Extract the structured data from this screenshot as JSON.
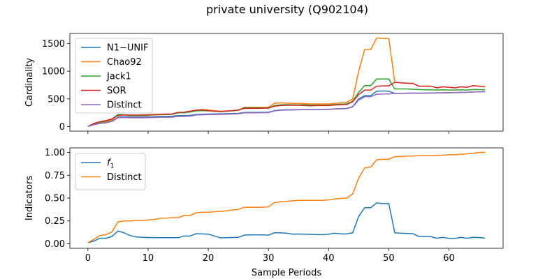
{
  "title": "private university (Q902104)",
  "chart_data": [
    {
      "type": "line",
      "ylabel": "Cardinality",
      "xlabel": "",
      "xlim": [
        -3,
        69
      ],
      "ylim": [
        -80,
        1680
      ],
      "yticks": [
        0,
        500,
        1000,
        1500
      ],
      "xticks": [
        0,
        10,
        20,
        30,
        40,
        50,
        60
      ],
      "show_xtick_labels": false,
      "grid": false,
      "legend_position": "top-left",
      "x": [
        0,
        1,
        2,
        3,
        4,
        5,
        6,
        7,
        8,
        9,
        10,
        11,
        12,
        13,
        14,
        15,
        16,
        17,
        18,
        19,
        20,
        21,
        22,
        23,
        24,
        25,
        26,
        27,
        28,
        29,
        30,
        31,
        32,
        33,
        34,
        35,
        36,
        37,
        38,
        39,
        40,
        41,
        42,
        43,
        44,
        45,
        46,
        47,
        48,
        49,
        50,
        51,
        52,
        53,
        54,
        55,
        56,
        57,
        58,
        59,
        60,
        61,
        62,
        63,
        64,
        65,
        66
      ],
      "series": [
        {
          "name": "N1−UNIF",
          "color": "#1f77b4",
          "values": [
            5,
            40,
            70,
            80,
            100,
            170,
            180,
            175,
            175,
            175,
            178,
            180,
            185,
            185,
            188,
            200,
            200,
            205,
            220,
            225,
            228,
            230,
            232,
            235,
            238,
            240,
            255,
            258,
            258,
            260,
            262,
            290,
            300,
            305,
            305,
            308,
            310,
            310,
            310,
            312,
            315,
            320,
            325,
            330,
            360,
            500,
            560,
            560,
            640,
            645,
            640,
            600,
            600,
            605,
            605,
            605,
            605,
            608,
            610,
            610,
            615,
            615,
            618,
            620,
            625,
            628,
            630
          ]
        },
        {
          "name": "Chao92",
          "color": "#ff7f0e",
          "values": [
            5,
            40,
            80,
            90,
            120,
            220,
            210,
            200,
            200,
            200,
            205,
            210,
            215,
            218,
            220,
            250,
            250,
            270,
            300,
            310,
            300,
            290,
            280,
            285,
            290,
            300,
            350,
            350,
            350,
            350,
            350,
            420,
            430,
            425,
            420,
            420,
            415,
            410,
            410,
            410,
            410,
            420,
            430,
            440,
            500,
            1000,
            1390,
            1390,
            1600,
            1590,
            1590,
            800,
            790,
            785,
            780,
            730,
            730,
            730,
            700,
            720,
            710,
            700,
            720,
            710,
            740,
            730,
            720
          ]
        },
        {
          "name": "Jack1",
          "color": "#2ca02c",
          "values": [
            5,
            50,
            80,
            100,
            140,
            220,
            215,
            205,
            205,
            205,
            210,
            215,
            220,
            222,
            225,
            250,
            250,
            265,
            285,
            290,
            285,
            280,
            272,
            280,
            285,
            295,
            340,
            342,
            340,
            340,
            340,
            380,
            395,
            398,
            395,
            395,
            395,
            390,
            390,
            390,
            390,
            400,
            405,
            410,
            460,
            620,
            740,
            740,
            860,
            860,
            860,
            680,
            680,
            680,
            675,
            670,
            665,
            665,
            660,
            665,
            660,
            660,
            665,
            660,
            670,
            668,
            665
          ]
        },
        {
          "name": "SOR",
          "color": "#d62728",
          "values": [
            5,
            60,
            90,
            110,
            140,
            200,
            210,
            210,
            210,
            210,
            215,
            220,
            225,
            228,
            230,
            260,
            262,
            280,
            300,
            300,
            290,
            280,
            270,
            280,
            290,
            300,
            330,
            332,
            330,
            332,
            335,
            370,
            380,
            385,
            385,
            385,
            380,
            375,
            380,
            380,
            380,
            390,
            395,
            400,
            450,
            580,
            660,
            660,
            730,
            735,
            735,
            800,
            790,
            785,
            780,
            730,
            730,
            730,
            700,
            720,
            710,
            700,
            720,
            710,
            740,
            730,
            720
          ]
        },
        {
          "name": "Distinct",
          "color": "#9467bd",
          "values": [
            5,
            35,
            60,
            70,
            95,
            160,
            165,
            160,
            160,
            160,
            162,
            165,
            170,
            170,
            172,
            185,
            185,
            190,
            210,
            215,
            218,
            220,
            222,
            225,
            228,
            232,
            248,
            250,
            250,
            252,
            255,
            285,
            295,
            300,
            302,
            305,
            308,
            310,
            310,
            310,
            312,
            318,
            322,
            325,
            355,
            480,
            540,
            540,
            585,
            590,
            590,
            600,
            600,
            602,
            602,
            602,
            605,
            605,
            608,
            610,
            612,
            615,
            618,
            620,
            625,
            628,
            630
          ]
        }
      ]
    },
    {
      "type": "line",
      "ylabel": "Indicators",
      "xlabel": "Sample Periods",
      "xlim": [
        -3,
        69
      ],
      "ylim": [
        -0.05,
        1.05
      ],
      "yticks": [
        0.0,
        0.25,
        0.5,
        0.75,
        1.0
      ],
      "ytick_labels": [
        "0.00",
        "0.25",
        "0.50",
        "0.75",
        "1.00"
      ],
      "xticks": [
        0,
        10,
        20,
        30,
        40,
        50,
        60
      ],
      "show_xtick_labels": true,
      "grid": false,
      "legend_position": "top-left",
      "x": [
        0,
        1,
        2,
        3,
        4,
        5,
        6,
        7,
        8,
        9,
        10,
        11,
        12,
        13,
        14,
        15,
        16,
        17,
        18,
        19,
        20,
        21,
        22,
        23,
        24,
        25,
        26,
        27,
        28,
        29,
        30,
        31,
        32,
        33,
        34,
        35,
        36,
        37,
        38,
        39,
        40,
        41,
        42,
        43,
        44,
        45,
        46,
        47,
        48,
        49,
        50,
        51,
        52,
        53,
        54,
        55,
        56,
        57,
        58,
        59,
        60,
        61,
        62,
        63,
        64,
        65,
        66
      ],
      "series": [
        {
          "name": "f1",
          "name_base": "f",
          "name_sub": "1",
          "color": "#1f77b4",
          "values": [
            0.01,
            0.03,
            0.06,
            0.06,
            0.08,
            0.14,
            0.12,
            0.09,
            0.075,
            0.07,
            0.068,
            0.067,
            0.066,
            0.066,
            0.066,
            0.066,
            0.085,
            0.085,
            0.11,
            0.108,
            0.105,
            0.085,
            0.065,
            0.066,
            0.068,
            0.07,
            0.095,
            0.097,
            0.097,
            0.097,
            0.095,
            0.12,
            0.12,
            0.115,
            0.105,
            0.107,
            0.105,
            0.103,
            0.1,
            0.1,
            0.105,
            0.115,
            0.108,
            0.108,
            0.12,
            0.3,
            0.395,
            0.395,
            0.448,
            0.44,
            0.44,
            0.12,
            0.115,
            0.112,
            0.11,
            0.08,
            0.08,
            0.078,
            0.06,
            0.07,
            0.06,
            0.058,
            0.07,
            0.06,
            0.07,
            0.068,
            0.062
          ]
        },
        {
          "name": "Distinct",
          "color": "#ff7f0e",
          "values": [
            0.01,
            0.05,
            0.09,
            0.1,
            0.13,
            0.24,
            0.25,
            0.25,
            0.255,
            0.255,
            0.26,
            0.265,
            0.28,
            0.28,
            0.285,
            0.285,
            0.31,
            0.31,
            0.34,
            0.345,
            0.345,
            0.35,
            0.355,
            0.36,
            0.37,
            0.375,
            0.4,
            0.4,
            0.4,
            0.4,
            0.405,
            0.45,
            0.46,
            0.465,
            0.47,
            0.475,
            0.475,
            0.475,
            0.475,
            0.475,
            0.48,
            0.49,
            0.495,
            0.5,
            0.545,
            0.72,
            0.83,
            0.84,
            0.92,
            0.925,
            0.925,
            0.955,
            0.955,
            0.96,
            0.96,
            0.965,
            0.965,
            0.965,
            0.968,
            0.97,
            0.975,
            0.975,
            0.98,
            0.985,
            0.99,
            1.0,
            1.0
          ]
        }
      ]
    }
  ]
}
